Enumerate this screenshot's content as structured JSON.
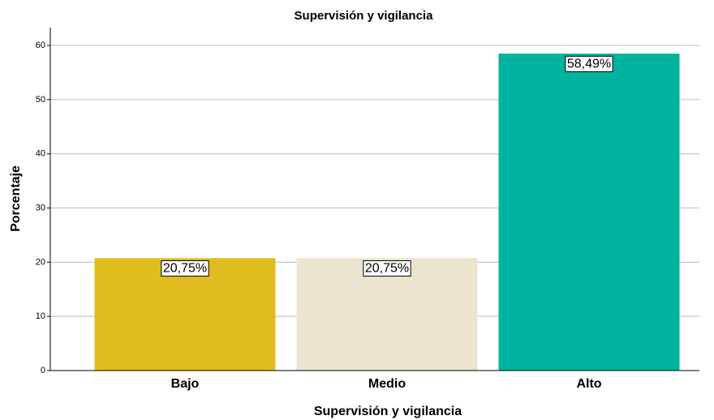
{
  "chart_data": {
    "type": "bar",
    "title": "Supervisión y vigilancia",
    "x_label": "Supervisión y vigilancia",
    "y_label": "Porcentaje",
    "categories": [
      "Bajo",
      "Medio",
      "Alto"
    ],
    "values": [
      20.75,
      20.75,
      58.49
    ],
    "value_labels": [
      "20,75%",
      "20,75%",
      "58,49%"
    ],
    "colors": [
      "#e1bc1e",
      "#ece4cf",
      "#00b39f"
    ],
    "ylim": [
      0,
      63.3
    ],
    "yticks": [
      0,
      10,
      20,
      30,
      40,
      50,
      60
    ],
    "grid": true
  }
}
